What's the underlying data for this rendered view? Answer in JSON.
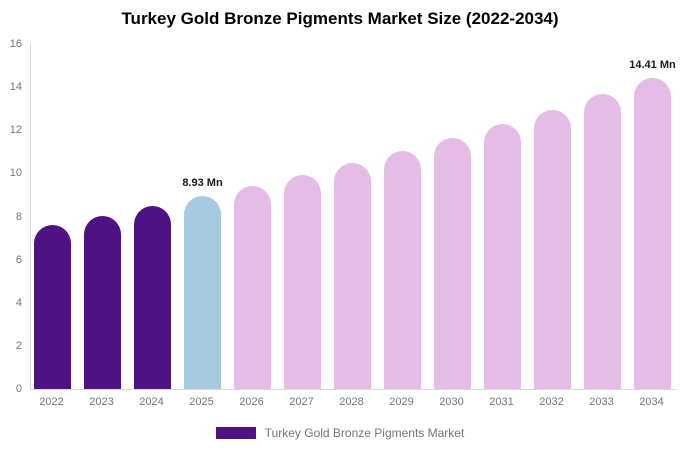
{
  "title": "Turkey Gold Bronze Pigments Market Size (2022-2034)",
  "legend": {
    "label": "Turkey Gold Bronze Pigments Market",
    "swatch_color": "#4e1283"
  },
  "colors": {
    "historical_bar": "#4e1283",
    "current_bar": "#a6cbe1",
    "forecast_bar": "#e4bce6",
    "axis_line": "#d9d9d9",
    "tick_text": "#757575",
    "annotation_text": "#1a1a1a"
  },
  "annotations": [
    {
      "category": "2025",
      "text": "8.93 Mn"
    },
    {
      "category": "2034",
      "text": "14.41 Mn"
    }
  ],
  "chart_data": {
    "type": "bar",
    "title": "Turkey Gold Bronze Pigments Market Size (2022-2034)",
    "categories": [
      "2022",
      "2023",
      "2024",
      "2025",
      "2026",
      "2027",
      "2028",
      "2029",
      "2030",
      "2031",
      "2032",
      "2033",
      "2034"
    ],
    "values": [
      7.61,
      8.03,
      8.47,
      8.93,
      9.42,
      9.93,
      10.47,
      11.04,
      11.65,
      12.28,
      12.95,
      13.66,
      14.41
    ],
    "unit": "Mn",
    "labeled_points": {
      "2025": 8.93,
      "2034": 14.41
    },
    "bar_roles": [
      "historical",
      "historical",
      "historical",
      "current",
      "forecast",
      "forecast",
      "forecast",
      "forecast",
      "forecast",
      "forecast",
      "forecast",
      "forecast",
      "forecast"
    ],
    "xlabel": "",
    "ylabel": "",
    "ylim": [
      0,
      16
    ],
    "yticks": [
      0,
      2,
      4,
      6,
      8,
      10,
      12,
      14,
      16
    ],
    "grid": false,
    "legend_position": "bottom",
    "series_name": "Turkey Gold Bronze Pigments Market"
  }
}
